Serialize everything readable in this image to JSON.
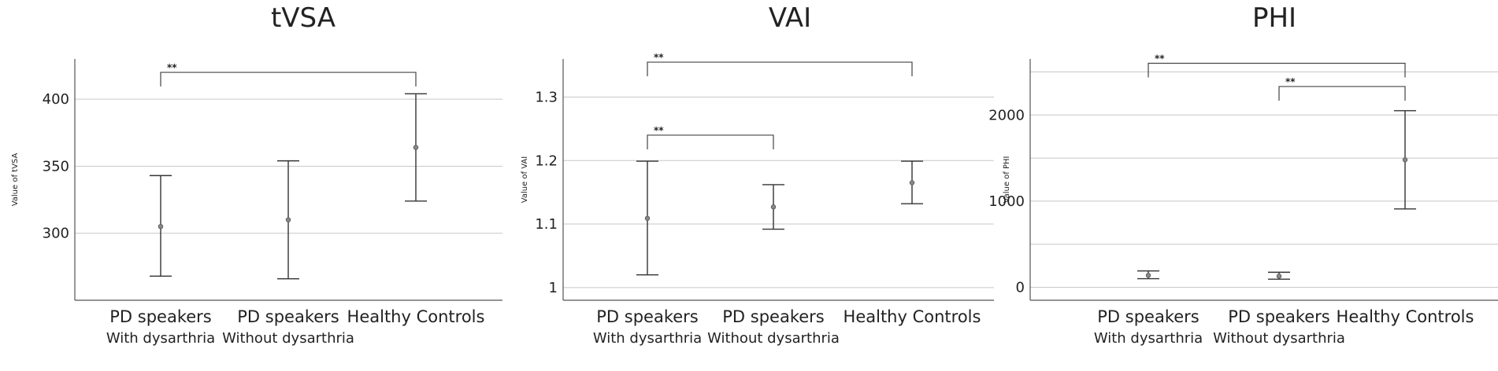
{
  "chart_data": [
    {
      "type": "errorbar",
      "title": "tVSA",
      "ylabel": "Value of tVSA",
      "ylim": [
        250,
        430
      ],
      "yticks": [
        300,
        350,
        400
      ],
      "grid": true,
      "categories": [
        {
          "line1": "PD speakers",
          "line2": "With dysarthria"
        },
        {
          "line1": "PD speakers",
          "line2": "Without dysarthria"
        },
        {
          "line1": "Healthy Controls",
          "line2": ""
        }
      ],
      "points": [
        {
          "mean": 305,
          "low": 268,
          "high": 343
        },
        {
          "mean": 310,
          "low": 266,
          "high": 354
        },
        {
          "mean": 364,
          "low": 324,
          "high": 404
        }
      ],
      "significance": [
        {
          "from": 0,
          "to": 2,
          "label": "**",
          "y": 420
        }
      ]
    },
    {
      "type": "errorbar",
      "title": "VAI",
      "ylabel": "Value of VAI",
      "ylim": [
        0.98,
        1.36
      ],
      "yticks": [
        1,
        1.1,
        1.2,
        1.3
      ],
      "grid": true,
      "categories": [
        {
          "line1": "PD speakers",
          "line2": "With dysarthria"
        },
        {
          "line1": "PD speakers",
          "line2": "Without dysarthria"
        },
        {
          "line1": "Healthy Controls",
          "line2": ""
        }
      ],
      "points": [
        {
          "mean": 1.109,
          "low": 1.02,
          "high": 1.199
        },
        {
          "mean": 1.127,
          "low": 1.092,
          "high": 1.162
        },
        {
          "mean": 1.165,
          "low": 1.132,
          "high": 1.199
        }
      ],
      "significance": [
        {
          "from": 0,
          "to": 2,
          "label": "**",
          "y": 1.355
        },
        {
          "from": 0,
          "to": 1,
          "label": "**",
          "y": 1.24
        }
      ]
    },
    {
      "type": "errorbar",
      "title": "PHI",
      "ylabel": "Value of PHI",
      "ylim": [
        -150,
        2650
      ],
      "yticks": [
        0,
        1000,
        2000
      ],
      "gridlines": [
        0,
        500,
        1000,
        1500,
        2000,
        2500
      ],
      "grid": true,
      "categories": [
        {
          "line1": "PD speakers",
          "line2": "With dysarthria"
        },
        {
          "line1": "PD speakers",
          "line2": "Without dysarthria"
        },
        {
          "line1": "Healthy Controls",
          "line2": ""
        }
      ],
      "points": [
        {
          "mean": 140,
          "low": 100,
          "high": 190
        },
        {
          "mean": 130,
          "low": 95,
          "high": 175
        },
        {
          "mean": 1480,
          "low": 910,
          "high": 2050
        }
      ],
      "significance": [
        {
          "from": 0,
          "to": 2,
          "label": "**",
          "y": 2600
        },
        {
          "from": 1,
          "to": 2,
          "label": "**",
          "y": 2330
        }
      ]
    }
  ]
}
